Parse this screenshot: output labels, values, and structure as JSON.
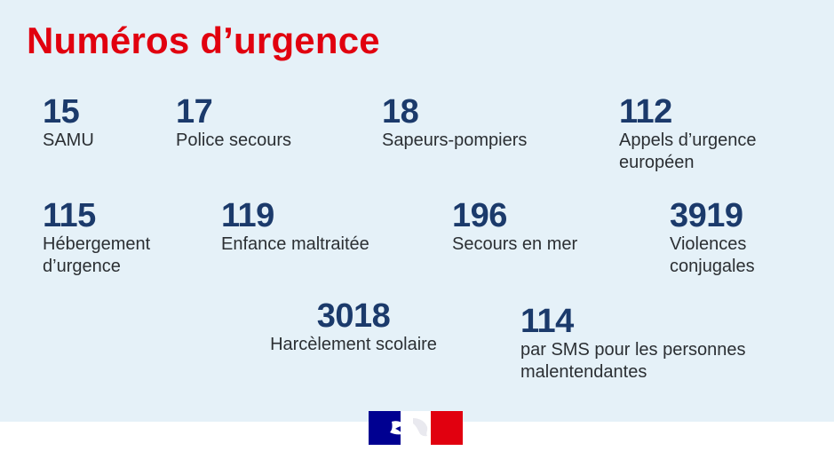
{
  "title": "Numéros d’urgence",
  "colors": {
    "title_red": "#e1000f",
    "number_blue": "#1b3a6b",
    "panel_background": "#e5f1f8",
    "flag_blue": "#000091",
    "flag_red": "#e1000f"
  },
  "entries": [
    {
      "number": "15",
      "label_lines": [
        "SAMU"
      ]
    },
    {
      "number": "17",
      "label_lines": [
        "Police secours"
      ]
    },
    {
      "number": "18",
      "label_lines": [
        "Sapeurs-pompiers"
      ]
    },
    {
      "number": "112",
      "label_lines": [
        "Appels d’urgence",
        "européen"
      ]
    },
    {
      "number": "115",
      "label_lines": [
        "Hébergement",
        "d’urgence"
      ]
    },
    {
      "number": "119",
      "label_lines": [
        "Enfance maltraitée"
      ]
    },
    {
      "number": "196",
      "label_lines": [
        "Secours en mer"
      ]
    },
    {
      "number": "3919",
      "label_lines": [
        "Violences",
        "conjugales"
      ]
    },
    {
      "number": "3018",
      "label_lines": [
        "Harcèlement scolaire"
      ]
    },
    {
      "number": "114",
      "label_lines": [
        "par SMS pour les personnes",
        "malentendantes"
      ]
    }
  ],
  "logo": {
    "icon": "marianne-flag-logo"
  }
}
